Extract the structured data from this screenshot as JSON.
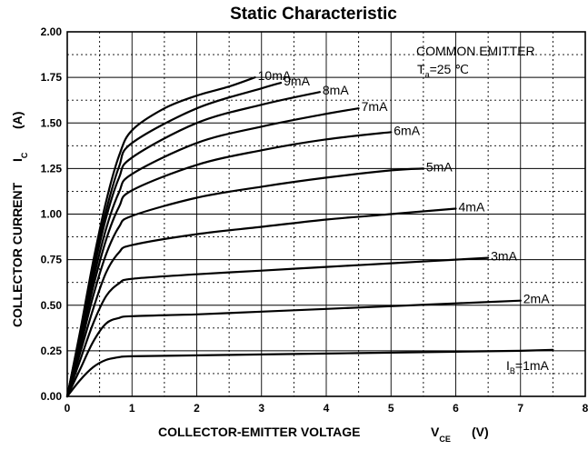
{
  "chart_data": {
    "type": "line",
    "title": "Static Characteristic",
    "xlabel": "COLLECTOR-EMITTER VOLTAGE",
    "xlabel_symbol": "V",
    "xlabel_symbol_sub": "CE",
    "xlabel_unit": "(V)",
    "ylabel": "COLLECTOR CURRENT",
    "ylabel_symbol": "I",
    "ylabel_symbol_sub": "C",
    "ylabel_unit": "(A)",
    "xlim": [
      0,
      8
    ],
    "ylim": [
      0,
      2.0
    ],
    "x_ticks": [
      "0",
      "1",
      "2",
      "3",
      "4",
      "5",
      "6",
      "7",
      "8"
    ],
    "y_ticks": [
      "0.00",
      "0.25",
      "0.50",
      "0.75",
      "1.00",
      "1.25",
      "1.50",
      "1.75",
      "2.00"
    ],
    "grid": true,
    "annotation": {
      "line1": "COMMON EMITTER",
      "line2_symbol": "T",
      "line2_sub": "a",
      "line2_rest": "=25 ℃"
    },
    "series": [
      {
        "label": "1mA",
        "label_prefix": "I",
        "label_sub": "B",
        "label_prefix_eq": "=1mA",
        "x": [
          0,
          0.2,
          0.4,
          0.6,
          0.8,
          1.0,
          2.0,
          3.0,
          4.0,
          5.0,
          6.0,
          7.0,
          7.5
        ],
        "y": [
          0,
          0.09,
          0.16,
          0.2,
          0.215,
          0.22,
          0.225,
          0.23,
          0.235,
          0.24,
          0.245,
          0.25,
          0.255
        ]
      },
      {
        "label": "2mA",
        "x": [
          0,
          0.2,
          0.4,
          0.6,
          0.8,
          1.0,
          2.0,
          3.0,
          4.0,
          5.0,
          6.0,
          7.0
        ],
        "y": [
          0,
          0.15,
          0.3,
          0.4,
          0.43,
          0.44,
          0.45,
          0.465,
          0.48,
          0.495,
          0.51,
          0.525
        ]
      },
      {
        "label": "3mA",
        "x": [
          0,
          0.2,
          0.4,
          0.6,
          0.8,
          1.0,
          2.0,
          3.0,
          4.0,
          5.0,
          6.0,
          6.5
        ],
        "y": [
          0,
          0.2,
          0.4,
          0.55,
          0.62,
          0.645,
          0.67,
          0.69,
          0.71,
          0.73,
          0.75,
          0.76
        ]
      },
      {
        "label": "4mA",
        "x": [
          0,
          0.2,
          0.4,
          0.6,
          0.8,
          1.0,
          2.0,
          3.0,
          4.0,
          5.0,
          6.0
        ],
        "y": [
          0,
          0.24,
          0.48,
          0.68,
          0.79,
          0.83,
          0.89,
          0.93,
          0.97,
          1.0,
          1.03
        ]
      },
      {
        "label": "5mA",
        "x": [
          0,
          0.2,
          0.4,
          0.6,
          0.8,
          1.0,
          2.0,
          3.0,
          4.0,
          5.0,
          5.5
        ],
        "y": [
          0,
          0.27,
          0.55,
          0.78,
          0.93,
          0.99,
          1.09,
          1.15,
          1.2,
          1.24,
          1.25
        ]
      },
      {
        "label": "6mA",
        "x": [
          0,
          0.2,
          0.4,
          0.6,
          0.8,
          1.0,
          2.0,
          3.0,
          4.0,
          5.0
        ],
        "y": [
          0,
          0.3,
          0.6,
          0.86,
          1.04,
          1.13,
          1.27,
          1.35,
          1.41,
          1.45
        ]
      },
      {
        "label": "7mA",
        "x": [
          0,
          0.2,
          0.4,
          0.6,
          0.8,
          1.0,
          2.0,
          3.0,
          4.0,
          4.5
        ],
        "y": [
          0,
          0.32,
          0.64,
          0.92,
          1.12,
          1.22,
          1.39,
          1.48,
          1.55,
          1.58
        ]
      },
      {
        "label": "8mA",
        "x": [
          0,
          0.2,
          0.4,
          0.6,
          0.8,
          1.0,
          2.0,
          3.0,
          3.9
        ],
        "y": [
          0,
          0.34,
          0.68,
          0.98,
          1.2,
          1.31,
          1.5,
          1.6,
          1.67
        ]
      },
      {
        "label": "9mA",
        "x": [
          0,
          0.2,
          0.4,
          0.6,
          0.8,
          1.0,
          2.0,
          3.0,
          3.3
        ],
        "y": [
          0,
          0.35,
          0.71,
          1.02,
          1.26,
          1.39,
          1.58,
          1.69,
          1.72
        ]
      },
      {
        "label": "10mA",
        "x": [
          0,
          0.2,
          0.4,
          0.6,
          0.8,
          1.0,
          1.5,
          2.0,
          2.5,
          2.9
        ],
        "y": [
          0,
          0.36,
          0.74,
          1.07,
          1.32,
          1.46,
          1.58,
          1.65,
          1.7,
          1.75
        ]
      }
    ]
  }
}
